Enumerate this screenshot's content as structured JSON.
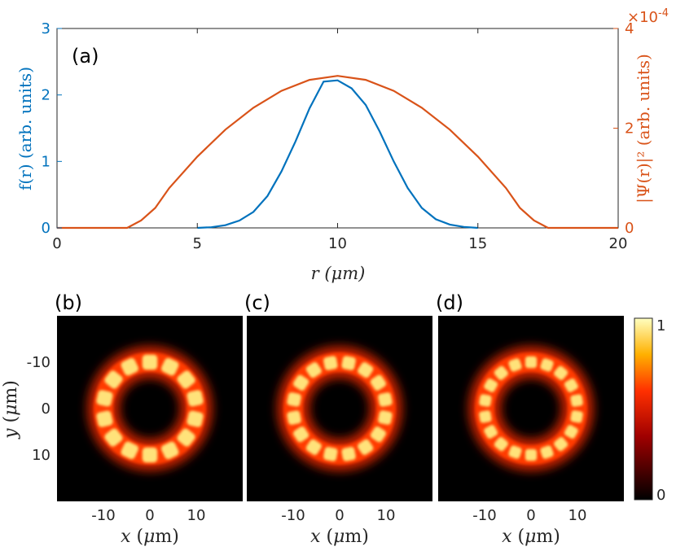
{
  "chart_data": [
    {
      "type": "line",
      "panel_label": "(a)",
      "xlabel": "r (μm)",
      "ylabel_left": "f(r) (arb. units)",
      "ylabel_right": "|Ψ(r)|² (arb. units)",
      "right_axis_multiplier": "×10",
      "right_axis_exponent": "-4",
      "xlim": [
        0,
        20
      ],
      "ylim_left": [
        0,
        3
      ],
      "ylim_right": [
        0,
        0.0004
      ],
      "xticks": [
        "0",
        "5",
        "10",
        "15",
        "20"
      ],
      "yticks_left": [
        "0",
        "1",
        "2",
        "3"
      ],
      "yticks_right": [
        "0",
        "2",
        "4"
      ],
      "colors": {
        "left": "#0072BD",
        "right": "#D95319"
      },
      "series": [
        {
          "axis": "left",
          "x": [
            5.0,
            5.5,
            6.0,
            6.5,
            7.0,
            7.5,
            8.0,
            8.5,
            9.0,
            9.5,
            10.0,
            10.5,
            11.0,
            11.5,
            12.0,
            12.5,
            13.0,
            13.5,
            14.0,
            14.5,
            15.0
          ],
          "y": [
            0.0,
            0.01,
            0.04,
            0.11,
            0.24,
            0.48,
            0.85,
            1.3,
            1.8,
            2.2,
            2.22,
            2.1,
            1.85,
            1.45,
            1.0,
            0.6,
            0.3,
            0.13,
            0.05,
            0.015,
            0.0
          ]
        },
        {
          "axis": "right",
          "x": [
            0,
            2.5,
            3.0,
            3.5,
            4.0,
            5.0,
            6.0,
            7.0,
            8.0,
            9.0,
            10.0,
            11.0,
            12.0,
            13.0,
            14.0,
            15.0,
            16.0,
            16.5,
            17.0,
            17.5,
            20
          ],
          "y": [
            0,
            0,
            1.5e-05,
            4e-05,
            8e-05,
            0.000143,
            0.000197,
            0.000241,
            0.000275,
            0.000297,
            0.000305,
            0.000297,
            0.000275,
            0.000241,
            0.000197,
            0.000143,
            8e-05,
            4e-05,
            1.5e-05,
            0,
            0
          ]
        }
      ]
    },
    {
      "type": "heatmap",
      "panels": [
        {
          "label": "(b)",
          "spots": 14,
          "offset_deg": 0
        },
        {
          "label": "(c)",
          "spots": 16,
          "offset_deg": 11.25
        },
        {
          "label": "(d)",
          "spots": 18,
          "offset_deg": 0
        }
      ],
      "ring_radius_um": 10,
      "ring_halfwidth_um": 3.5,
      "xlabel": "x (μm)",
      "ylabel": "y (μm)",
      "xticks": [
        "-10",
        "0",
        "10"
      ],
      "yticks": [
        "-10",
        "0",
        "10"
      ],
      "colorbar_ticks": [
        "0",
        "1"
      ],
      "colormap": "hot"
    }
  ]
}
